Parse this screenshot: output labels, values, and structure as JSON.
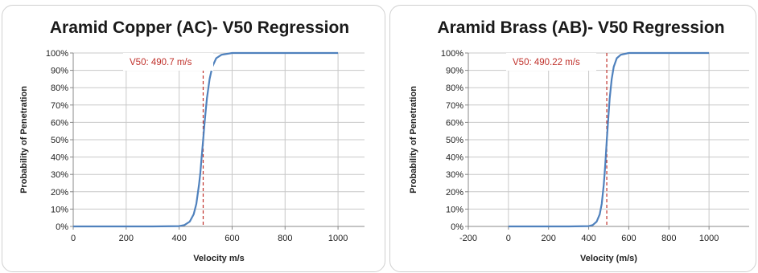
{
  "chart_data": [
    {
      "type": "line",
      "title": "Aramid Copper (AC)- V50 Regression",
      "xlabel": "Velocity m/s",
      "ylabel": "Probability of Penetration",
      "xlim": [
        0,
        1100
      ],
      "ylim": [
        0,
        1
      ],
      "x_ticks": [
        0,
        200,
        400,
        600,
        800,
        1000
      ],
      "x_tick_labels": [
        "0",
        "200",
        "400",
        "600",
        "800",
        "1000"
      ],
      "y_ticks": [
        0,
        0.1,
        0.2,
        0.3,
        0.4,
        0.5,
        0.6,
        0.7,
        0.8,
        0.9,
        1.0
      ],
      "y_tick_labels": [
        "0%",
        "10%",
        "20%",
        "30%",
        "40%",
        "50%",
        "60%",
        "70%",
        "80%",
        "90%",
        "100%"
      ],
      "grid": true,
      "v50": 490.7,
      "v50_label": "V50: 490.7 m/s",
      "series": [
        {
          "x": [
            0,
            300,
            400,
            420,
            440,
            455,
            465,
            475,
            480,
            485,
            490.7,
            495,
            500,
            505,
            515,
            525,
            540,
            560,
            600,
            800,
            1000
          ],
          "values": [
            0,
            0,
            0.002,
            0.008,
            0.028,
            0.07,
            0.13,
            0.24,
            0.31,
            0.4,
            0.5,
            0.58,
            0.66,
            0.74,
            0.85,
            0.92,
            0.97,
            0.99,
            1.0,
            1.0,
            1.0
          ]
        }
      ],
      "colors": {
        "line": "#4f81bd",
        "v50_line": "#c0312b",
        "grid": "#c8c8c8"
      }
    },
    {
      "type": "line",
      "title": "Aramid Brass (AB)- V50 Regression",
      "xlabel": "Velocity (m/s)",
      "ylabel": "Probability of Penetration",
      "xlim": [
        -200,
        1200
      ],
      "ylim": [
        0,
        1
      ],
      "x_ticks": [
        -200,
        0,
        200,
        400,
        600,
        800,
        1000
      ],
      "x_tick_labels": [
        "-200",
        "0",
        "200",
        "400",
        "600",
        "800",
        "1000"
      ],
      "y_ticks": [
        0,
        0.1,
        0.2,
        0.3,
        0.4,
        0.5,
        0.6,
        0.7,
        0.8,
        0.9,
        1.0
      ],
      "y_tick_labels": [
        "0%",
        "10%",
        "20%",
        "30%",
        "40%",
        "50%",
        "60%",
        "70%",
        "80%",
        "90%",
        "100%"
      ],
      "grid": true,
      "v50": 490.22,
      "v50_label": "V50: 490.22 m/s",
      "series": [
        {
          "x": [
            0,
            300,
            400,
            420,
            440,
            455,
            465,
            475,
            480,
            485,
            490.22,
            495,
            500,
            505,
            515,
            525,
            540,
            560,
            600,
            800,
            1000
          ],
          "values": [
            0,
            0,
            0.002,
            0.008,
            0.028,
            0.07,
            0.13,
            0.24,
            0.31,
            0.4,
            0.5,
            0.58,
            0.66,
            0.74,
            0.85,
            0.92,
            0.97,
            0.99,
            1.0,
            1.0,
            1.0
          ]
        }
      ],
      "colors": {
        "line": "#4f81bd",
        "v50_line": "#c0312b",
        "grid": "#c8c8c8"
      }
    }
  ]
}
